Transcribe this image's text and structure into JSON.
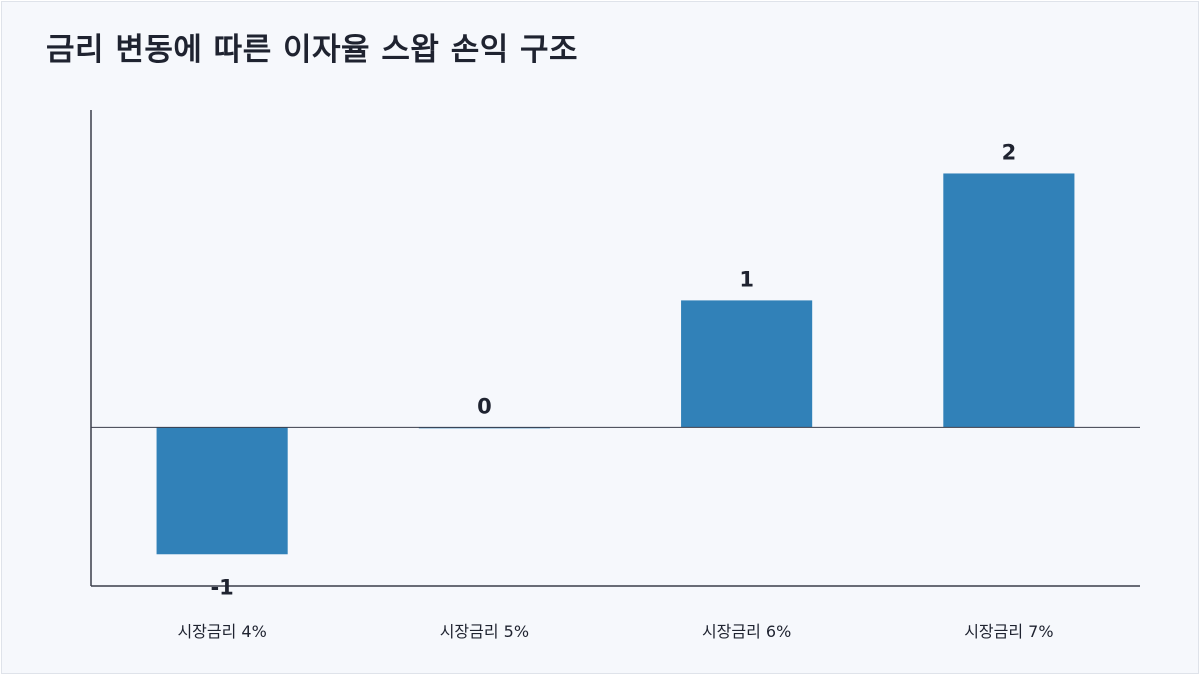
{
  "chart_data": {
    "type": "bar",
    "title": "금리 변동에 따른 이자율 스왑 손익 구조",
    "categories": [
      "시장금리 4%",
      "시장금리 5%",
      "시장금리 6%",
      "시장금리 7%"
    ],
    "values": [
      -1,
      0,
      1,
      2
    ],
    "xlabel": "",
    "ylabel": "",
    "ylim": [
      -1.25,
      2.5
    ],
    "grid": false,
    "bar_color": "#3181b8",
    "axis_color": "#3a3d4a"
  }
}
